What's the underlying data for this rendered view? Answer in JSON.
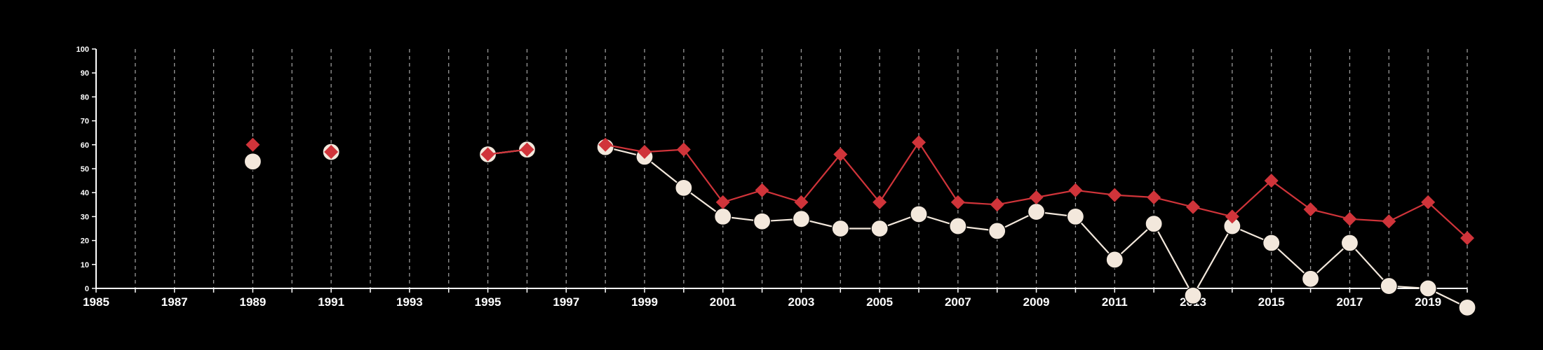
{
  "chart_data": {
    "type": "line",
    "title": "",
    "xlabel": "",
    "ylabel": "",
    "xlim": [
      1985,
      2020
    ],
    "ylim": [
      0,
      100
    ],
    "x_tick_labels": [
      "1985",
      "1987",
      "1989",
      "1991",
      "1993",
      "1995",
      "1997",
      "1999",
      "2001",
      "2003",
      "2005",
      "2007",
      "2009",
      "2011",
      "2013",
      "2015",
      "2017",
      "2019"
    ],
    "y_tick_labels": [
      "0",
      "10",
      "20",
      "30",
      "40",
      "50",
      "60",
      "70",
      "80",
      "90",
      "100"
    ],
    "grid": "vertical dashed lines at every year",
    "legend": "none",
    "background": "#000000",
    "series": [
      {
        "color": "#d0343a",
        "marker": "diamond",
        "points": [
          [
            1989,
            60
          ],
          [
            1991,
            57
          ],
          [
            1995,
            56
          ],
          [
            1996,
            58
          ],
          [
            1998,
            60
          ],
          [
            1999,
            57
          ],
          [
            2000,
            58
          ],
          [
            2001,
            36
          ],
          [
            2002,
            41
          ],
          [
            2003,
            36
          ],
          [
            2004,
            56
          ],
          [
            2005,
            36
          ],
          [
            2006,
            61
          ],
          [
            2007,
            36
          ],
          [
            2008,
            35
          ],
          [
            2009,
            38
          ],
          [
            2010,
            41
          ],
          [
            2011,
            39
          ],
          [
            2012,
            38
          ],
          [
            2013,
            34
          ],
          [
            2014,
            30
          ],
          [
            2015,
            45
          ],
          [
            2016,
            33
          ],
          [
            2017,
            29
          ],
          [
            2018,
            28
          ],
          [
            2019,
            36
          ],
          [
            2020,
            21
          ]
        ]
      },
      {
        "color": "#f3e8dc",
        "marker": "circle",
        "points": [
          [
            1989,
            53
          ],
          [
            1991,
            57
          ],
          [
            1995,
            56
          ],
          [
            1996,
            58
          ],
          [
            1998,
            59
          ],
          [
            1999,
            55
          ],
          [
            2000,
            42
          ],
          [
            2001,
            30
          ],
          [
            2002,
            28
          ],
          [
            2003,
            29
          ],
          [
            2004,
            25
          ],
          [
            2005,
            25
          ],
          [
            2006,
            31
          ],
          [
            2007,
            26
          ],
          [
            2008,
            24
          ],
          [
            2009,
            32
          ],
          [
            2010,
            30
          ],
          [
            2011,
            12
          ],
          [
            2012,
            27
          ],
          [
            2013,
            -3
          ],
          [
            2014,
            26
          ],
          [
            2015,
            19
          ],
          [
            2016,
            4
          ],
          [
            2017,
            19
          ],
          [
            2018,
            1
          ],
          [
            2019,
            0
          ],
          [
            2020,
            -8
          ]
        ]
      }
    ]
  }
}
